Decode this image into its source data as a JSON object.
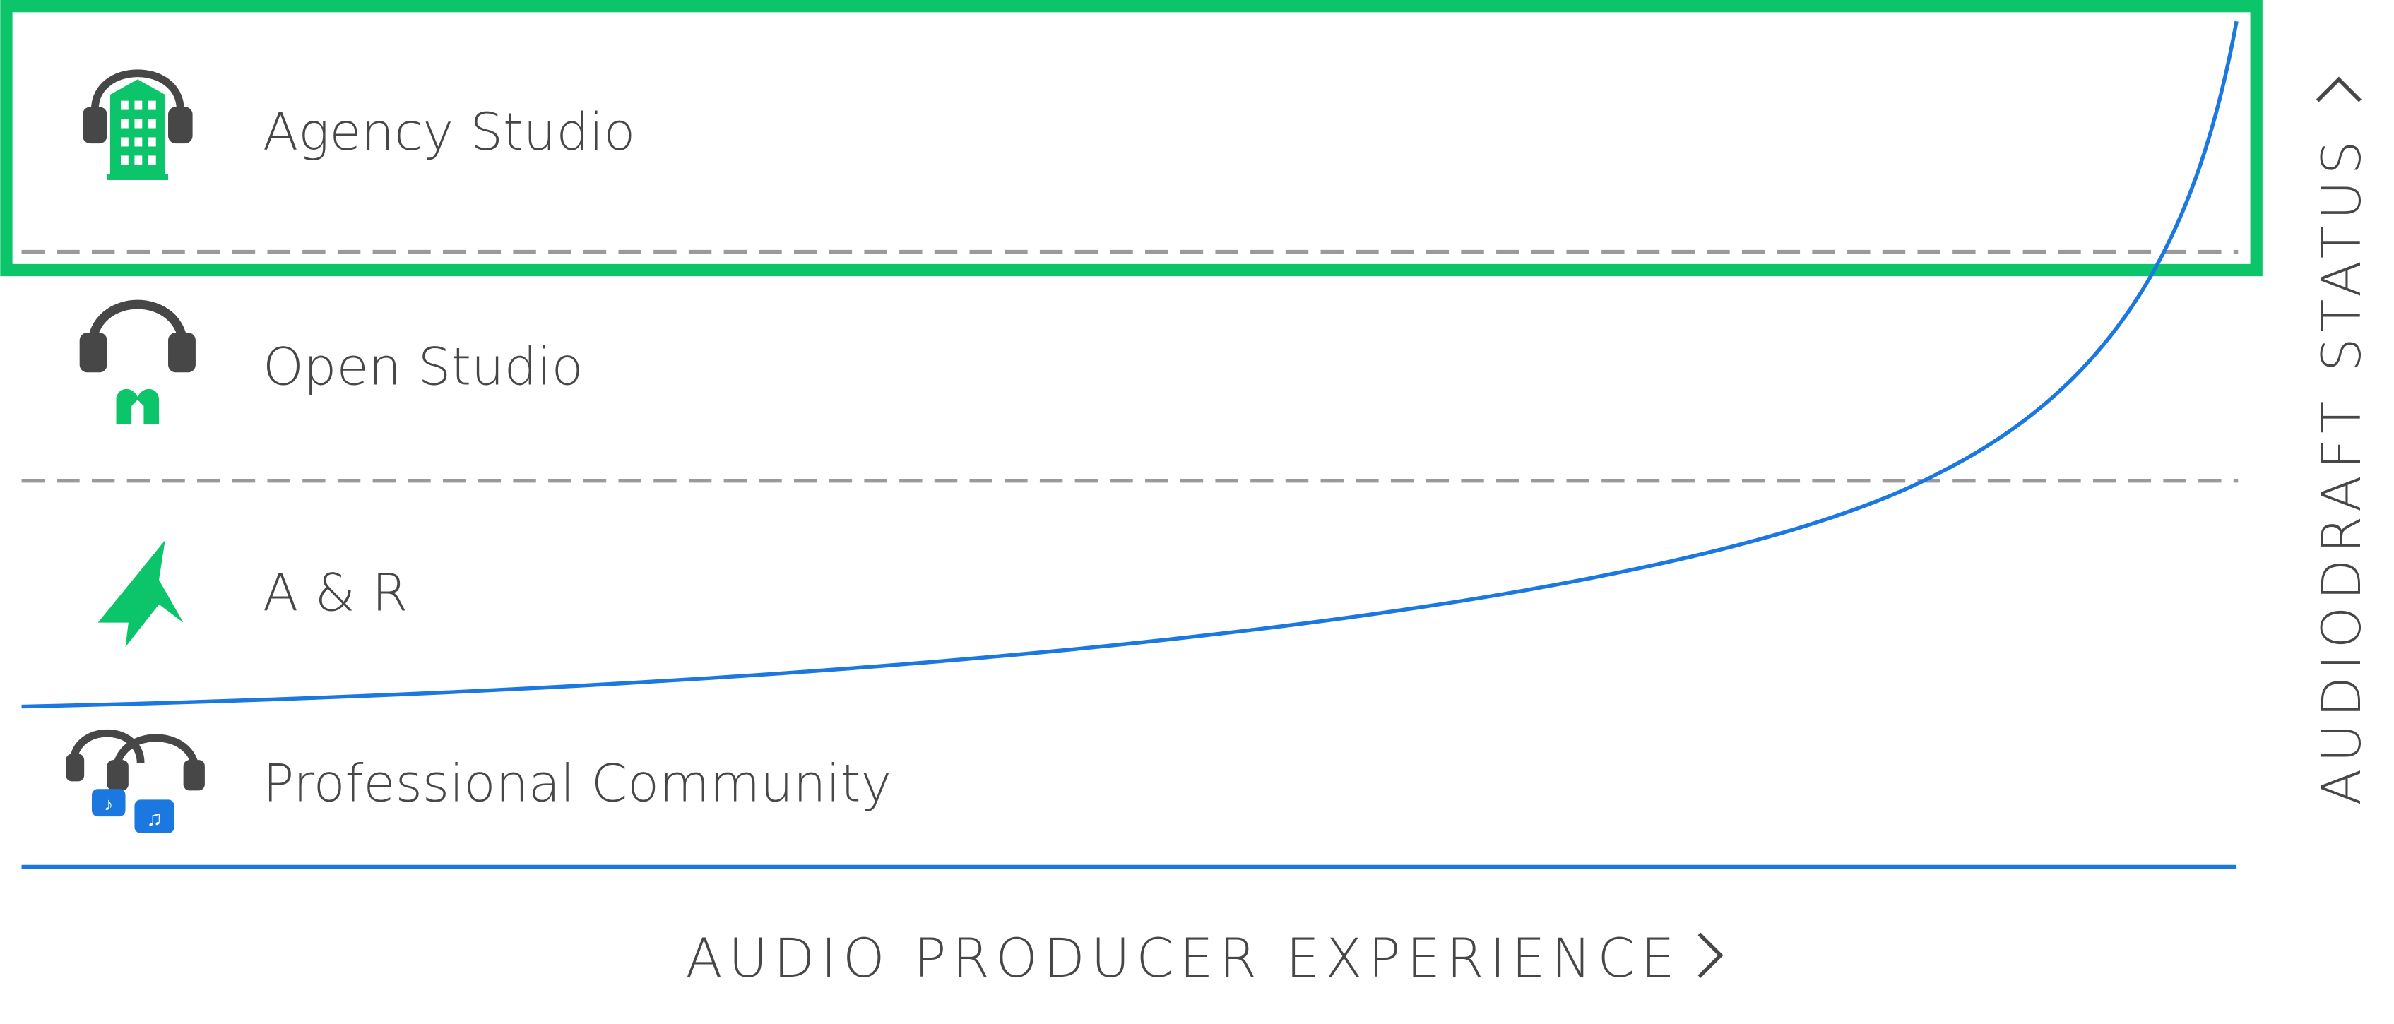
{
  "tiers": [
    {
      "label": "Agency Studio"
    },
    {
      "label": "Open Studio"
    },
    {
      "label": "A & R"
    },
    {
      "label": "Professional Community"
    }
  ],
  "x_axis_label": "AUDIO PRODUCER EXPERIENCE",
  "y_axis_label": "AUDIODRAFT STATUS"
}
